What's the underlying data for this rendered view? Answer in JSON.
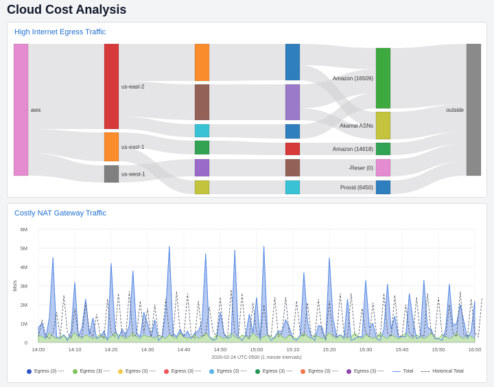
{
  "page": {
    "title": "Cloud Cost Analysis"
  },
  "egress_panel": {
    "title": "High Internet Egress Traffic",
    "sankey": {
      "nodes": [
        {
          "id": "aws",
          "label": "aws",
          "color": "#e58bcf"
        },
        {
          "id": "use2",
          "label": "us-east-2",
          "color": "#d63a3a"
        },
        {
          "id": "use1",
          "label": "us-east-1",
          "color": "#fb8c2b"
        },
        {
          "id": "usw1",
          "label": "us-west-1",
          "color": "#7f7f7f"
        },
        {
          "id": "c2a",
          "label": "",
          "color": "#fb8c2b"
        },
        {
          "id": "c2b",
          "label": "",
          "color": "#946157"
        },
        {
          "id": "c2c",
          "label": "",
          "color": "#39c2d6"
        },
        {
          "id": "c2d",
          "label": "",
          "color": "#31a353"
        },
        {
          "id": "c2e",
          "label": "",
          "color": "#9a6bc9"
        },
        {
          "id": "c2f",
          "label": "",
          "color": "#c3c33e"
        },
        {
          "id": "c3a",
          "label": "",
          "color": "#2f7fbf"
        },
        {
          "id": "c3b",
          "label": "",
          "color": "#9a7ac9"
        },
        {
          "id": "c3c",
          "label": "",
          "color": "#2f7fbf"
        },
        {
          "id": "c3d",
          "label": "",
          "color": "#d63a3a"
        },
        {
          "id": "c3e",
          "label": "",
          "color": "#946157"
        },
        {
          "id": "c3f",
          "label": "",
          "color": "#39c2d6"
        },
        {
          "id": "amz16509",
          "label": "Amazon (16509)",
          "color": "#3ea93e"
        },
        {
          "id": "akamai",
          "label": "Akamai ASNs",
          "color": "#c3c33e"
        },
        {
          "id": "amz14618",
          "label": "Amazon (14618)",
          "color": "#31a353"
        },
        {
          "id": "reser",
          "label": "-Reser (0)",
          "color": "#e58bcf"
        },
        {
          "id": "provid",
          "label": "Provid (6450)",
          "color": "#2f7fbf"
        },
        {
          "id": "outside",
          "label": "outside",
          "color": "#8a8a8a"
        }
      ]
    }
  },
  "nat_panel": {
    "title": "Costly NAT Gateway Traffic",
    "chart_data": {
      "type": "area",
      "title": "Costly NAT Gateway Traffic",
      "ylabel": "bits/s",
      "xlabel": "2026-02-24 UTC-0500 (1 minute intervals)",
      "y_ticks": [
        "0",
        "1M",
        "2M",
        "3M",
        "4M",
        "5M",
        "6M"
      ],
      "ylim": [
        0,
        6
      ],
      "y_unit": "M bits/s",
      "x_ticks": [
        "14:00",
        "14:10",
        "14:20",
        "14:30",
        "14:40",
        "14:50",
        "15:00",
        "15:10",
        "15:20",
        "15:30",
        "15:40",
        "15:50",
        "16:00"
      ],
      "x_range_minutes": [
        0,
        120
      ],
      "grid": true,
      "legend_position": "bottom",
      "series": [
        {
          "name": "Egress (3) ----",
          "kind": "area",
          "color": "#2f55c2",
          "values": [
            0.8,
            1.0,
            0.2,
            1.3,
            4.5,
            0.3,
            0.2,
            0.4,
            0.1,
            0.6,
            3.2,
            0.3,
            0.8,
            2.3,
            0.4,
            1.3,
            0.2,
            0.3,
            0.6,
            0.1,
            4.2,
            0.8,
            0.2,
            0.7,
            0.4,
            0.9,
            3.8,
            0.5,
            0.3,
            1.6,
            1.0,
            0.3,
            1.2,
            0.1,
            0.3,
            1.6,
            5.1,
            0.5,
            0.3,
            0.7,
            0.3,
            0.6,
            0.2,
            0.5,
            0.6,
            1.1,
            4.7,
            0.3,
            0.1,
            0.2,
            1.6,
            0.5,
            0.2,
            0.3,
            4.9,
            0.3,
            0.1,
            0.4,
            1.5,
            0.5,
            2.4,
            0.1,
            5.1,
            0.4,
            0.1,
            0.3,
            0.6,
            0.6,
            1.2,
            0.8,
            0.2,
            0.1,
            0.4,
            3.7,
            1.1,
            0.3,
            0.1,
            0.9,
            0.8,
            0.1,
            4.5,
            1.3,
            0.3,
            0.4,
            0.2,
            2.3,
            0.1,
            0.2,
            0.3,
            0.3,
            3.3,
            0.8,
            1.0,
            0.2,
            0.1,
            0.7,
            3.1,
            0.7,
            1.4,
            0.3,
            0.3,
            0.3,
            2.6,
            1.2,
            0.2,
            0.3,
            3.3,
            0.8,
            0.7,
            0.2,
            0.2,
            0.1,
            0.7,
            3.1,
            0.9,
            1.0,
            2.0,
            1.1,
            0.2,
            0.6,
            2.2
          ]
        },
        {
          "name": "Egress (3) ----",
          "kind": "area",
          "color": "#7fc25a",
          "values": [
            0.4,
            0.3,
            0.2,
            0.5,
            0.3,
            0.2,
            0.3,
            0.4,
            0.2,
            0.3,
            0.5,
            0.3,
            0.2,
            0.4,
            0.3,
            0.2,
            0.3,
            0.4,
            0.3,
            0.2,
            0.3,
            0.5,
            0.4,
            0.3,
            0.2,
            0.3,
            0.5,
            0.3,
            0.2,
            0.4,
            0.3,
            0.3,
            0.2,
            0.4,
            0.3,
            0.2,
            0.4,
            0.3,
            0.2,
            0.5,
            0.3,
            0.2,
            0.3,
            0.4,
            0.2,
            0.3,
            0.5,
            0.3,
            0.2,
            0.4,
            0.3,
            0.2,
            0.3,
            0.5,
            0.3,
            0.2,
            0.4,
            0.3,
            0.2,
            0.5,
            0.3,
            0.2,
            0.3,
            0.4,
            0.3,
            0.2,
            0.5,
            0.3,
            0.2,
            0.4,
            0.3,
            0.2,
            0.3,
            0.5,
            0.3,
            0.2,
            0.4,
            0.3,
            0.2,
            0.3,
            0.5,
            0.3,
            0.2,
            0.4,
            0.3,
            0.2,
            0.3,
            0.5,
            0.3,
            0.2,
            0.4,
            0.3,
            0.2,
            0.3,
            0.5,
            0.3,
            0.2,
            0.4,
            0.3,
            0.2,
            0.3,
            0.5,
            0.3,
            0.2,
            0.4,
            0.3,
            0.2,
            0.3,
            0.5,
            0.3,
            0.2,
            0.4,
            0.3,
            0.2,
            0.3,
            0.5,
            0.3,
            0.2,
            0.4,
            0.3,
            0.2
          ]
        },
        {
          "name": "Egress (3) ----",
          "kind": "dot",
          "color": "#f2c94c",
          "values": []
        },
        {
          "name": "Egress (3) ----",
          "kind": "dot",
          "color": "#eb5757",
          "values": []
        },
        {
          "name": "Egress (3) ----",
          "kind": "dot",
          "color": "#56b4e9",
          "values": []
        },
        {
          "name": "Egress (3) ----",
          "kind": "dot",
          "color": "#219653",
          "values": []
        },
        {
          "name": "Egress (3) ----",
          "kind": "dot",
          "color": "#f2784b",
          "values": []
        },
        {
          "name": "Egress (3) ----",
          "kind": "dot",
          "color": "#8e44ad",
          "values": []
        },
        {
          "name": "Total",
          "kind": "line",
          "color": "#5b8ee6",
          "values": [
            0.8,
            1.0,
            0.2,
            1.3,
            4.5,
            0.3,
            0.2,
            0.4,
            0.1,
            0.6,
            3.2,
            0.3,
            0.8,
            2.3,
            0.4,
            1.3,
            0.2,
            0.3,
            0.6,
            0.1,
            4.2,
            0.8,
            0.2,
            0.7,
            0.4,
            0.9,
            3.8,
            0.5,
            0.3,
            1.6,
            1.0,
            0.3,
            1.2,
            0.1,
            0.3,
            1.6,
            5.1,
            0.5,
            0.3,
            0.7,
            0.3,
            0.6,
            0.2,
            0.5,
            0.6,
            1.1,
            4.7,
            0.3,
            0.1,
            0.2,
            1.6,
            0.5,
            0.2,
            0.3,
            4.9,
            0.3,
            0.1,
            0.4,
            1.5,
            0.5,
            2.4,
            0.1,
            5.1,
            0.4,
            0.1,
            0.3,
            0.6,
            0.6,
            1.2,
            0.8,
            0.2,
            0.1,
            0.4,
            3.7,
            1.1,
            0.3,
            0.1,
            0.9,
            0.8,
            0.1,
            4.5,
            1.3,
            0.3,
            0.4,
            0.2,
            2.3,
            0.1,
            0.2,
            0.3,
            0.3,
            3.3,
            0.8,
            1.0,
            0.2,
            0.1,
            0.7,
            3.1,
            0.7,
            1.4,
            0.3,
            0.3,
            0.3,
            2.6,
            1.2,
            0.2,
            0.3,
            3.3,
            0.8,
            0.7,
            0.2,
            0.2,
            0.1,
            0.7,
            3.1,
            0.9,
            1.0,
            2.0,
            1.1,
            0.2,
            0.6,
            2.2
          ]
        },
        {
          "name": "Historical Total",
          "kind": "dashed",
          "color": "#555b66",
          "values": [
            0.3,
            1.2,
            0.4,
            0.2,
            0.5,
            1.6,
            0.3,
            2.5,
            0.5,
            0.2,
            1.8,
            0.4,
            0.3,
            2.1,
            0.6,
            0.3,
            1.5,
            0.4,
            0.2,
            2.3,
            0.5,
            0.3,
            2.6,
            0.4,
            0.3,
            2.7,
            0.3,
            0.4,
            2.2,
            0.5,
            1.8,
            0.3,
            2.0,
            0.4,
            0.3,
            2.3,
            0.5,
            0.3,
            2.7,
            0.5,
            0.3,
            2.6,
            0.4,
            0.2,
            2.2,
            0.3,
            0.4,
            1.9,
            0.6,
            0.3,
            2.4,
            0.4,
            0.3,
            2.8,
            0.5,
            0.3,
            2.6,
            0.4,
            0.2,
            2.1,
            0.5,
            0.3,
            2.0,
            0.4,
            0.3,
            2.4,
            0.3,
            0.5,
            2.4,
            0.4,
            0.3,
            2.2,
            0.5,
            0.3,
            2.1,
            0.4,
            0.3,
            2.3,
            0.5,
            0.2,
            2.2,
            0.4,
            0.3,
            2.6,
            0.5,
            0.3,
            2.6,
            0.4,
            0.3,
            1.8,
            0.5,
            0.3,
            2.1,
            0.4,
            0.3,
            2.6,
            0.5,
            0.3,
            2.5,
            0.4,
            0.3,
            2.0,
            0.5,
            0.3,
            2.4,
            0.4,
            0.3,
            2.6,
            0.5,
            0.3,
            2.4,
            0.4,
            0.3,
            2.0,
            0.5,
            0.3,
            2.7,
            0.4,
            0.3,
            2.3,
            0.5,
            0.3,
            2.4
          ]
        }
      ]
    }
  }
}
